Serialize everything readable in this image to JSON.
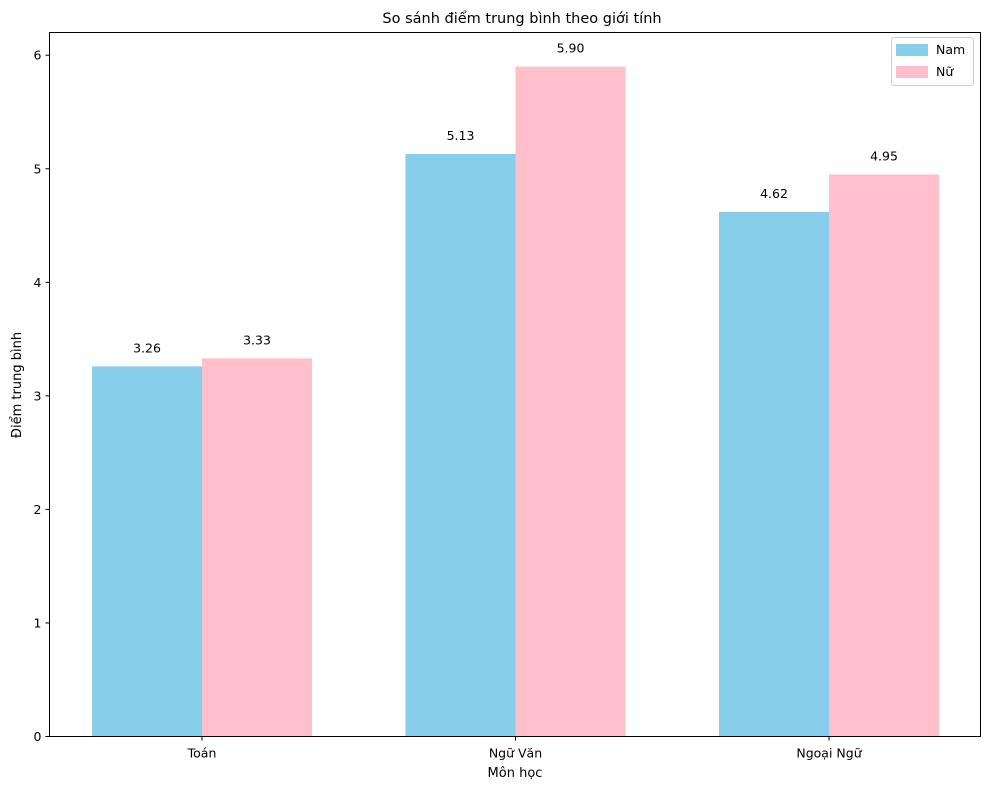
{
  "chart_data": {
    "type": "bar",
    "title": "So sánh điểm trung bình theo giới tính",
    "xlabel": "Môn học",
    "ylabel": "Điểm trung bình",
    "categories": [
      "Toán",
      "Ngữ Văn",
      "Ngoại Ngữ"
    ],
    "series": [
      {
        "name": "Nam",
        "values": [
          3.26,
          5.13,
          4.62
        ],
        "labels": [
          "3.26",
          "5.13",
          "4.62"
        ],
        "color": "#87CEEB"
      },
      {
        "name": "Nữ",
        "values": [
          3.33,
          5.9,
          4.95
        ],
        "labels": [
          "3.33",
          "5.90",
          "4.95"
        ],
        "color": "#FFC0CB"
      }
    ],
    "ylim": [
      0,
      6.2
    ],
    "yticks": [
      "0",
      "1",
      "2",
      "3",
      "4",
      "5",
      "6"
    ],
    "grid": false,
    "legend_position": "top-right"
  }
}
